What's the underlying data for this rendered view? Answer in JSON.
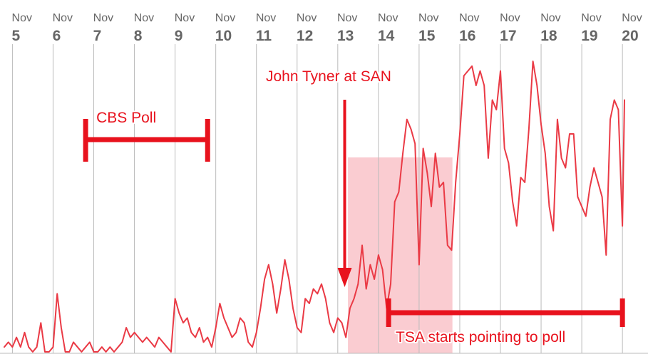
{
  "colors": {
    "line": "#ea3a45",
    "annotation": "#e8121d",
    "highlight": "#f6a3ac",
    "grid": "#bbbbbb",
    "tick_text": "#666666"
  },
  "chart_data": {
    "type": "line",
    "title": "",
    "xlabel": "",
    "ylabel": "",
    "grid": true,
    "legend": "none",
    "x_ticks": [
      {
        "month": "Nov",
        "day": "5"
      },
      {
        "month": "Nov",
        "day": "6"
      },
      {
        "month": "Nov",
        "day": "7"
      },
      {
        "month": "Nov",
        "day": "8"
      },
      {
        "month": "Nov",
        "day": "9"
      },
      {
        "month": "Nov",
        "day": "10"
      },
      {
        "month": "Nov",
        "day": "11"
      },
      {
        "month": "Nov",
        "day": "12"
      },
      {
        "month": "Nov",
        "day": "13"
      },
      {
        "month": "Nov",
        "day": "14"
      },
      {
        "month": "Nov",
        "day": "15"
      },
      {
        "month": "Nov",
        "day": "16"
      },
      {
        "month": "Nov",
        "day": "17"
      },
      {
        "month": "Nov",
        "day": "18"
      },
      {
        "month": "Nov",
        "day": "19"
      },
      {
        "month": "Nov",
        "day": "20"
      }
    ],
    "xlim": [
      4.85,
      20.1
    ],
    "ylim": [
      0,
      100
    ],
    "series": [
      {
        "points": [
          [
            4.85,
            1
          ],
          [
            4.95,
            2
          ],
          [
            5.05,
            1
          ],
          [
            5.15,
            3
          ],
          [
            5.25,
            1
          ],
          [
            5.35,
            4
          ],
          [
            5.45,
            1
          ],
          [
            5.55,
            0
          ],
          [
            5.65,
            1
          ],
          [
            5.75,
            6
          ],
          [
            5.85,
            0
          ],
          [
            5.95,
            0
          ],
          [
            6.05,
            1
          ],
          [
            6.15,
            12
          ],
          [
            6.25,
            5
          ],
          [
            6.35,
            0
          ],
          [
            6.45,
            0
          ],
          [
            6.55,
            2
          ],
          [
            6.65,
            1
          ],
          [
            6.75,
            0
          ],
          [
            6.85,
            1
          ],
          [
            6.95,
            2
          ],
          [
            7.05,
            0
          ],
          [
            7.15,
            0
          ],
          [
            7.25,
            1
          ],
          [
            7.35,
            0
          ],
          [
            7.45,
            1
          ],
          [
            7.55,
            0
          ],
          [
            7.65,
            1
          ],
          [
            7.75,
            2
          ],
          [
            7.85,
            5
          ],
          [
            7.95,
            3
          ],
          [
            8.05,
            4
          ],
          [
            8.15,
            3
          ],
          [
            8.25,
            2
          ],
          [
            8.35,
            3
          ],
          [
            8.45,
            2
          ],
          [
            8.55,
            1
          ],
          [
            8.65,
            3
          ],
          [
            8.75,
            2
          ],
          [
            8.85,
            1
          ],
          [
            8.95,
            0
          ],
          [
            9.05,
            11
          ],
          [
            9.15,
            8
          ],
          [
            9.25,
            6
          ],
          [
            9.35,
            7
          ],
          [
            9.45,
            4
          ],
          [
            9.55,
            3
          ],
          [
            9.65,
            5
          ],
          [
            9.75,
            2
          ],
          [
            9.85,
            3
          ],
          [
            9.95,
            1
          ],
          [
            10.05,
            5
          ],
          [
            10.15,
            10
          ],
          [
            10.25,
            7
          ],
          [
            10.35,
            5
          ],
          [
            10.45,
            3
          ],
          [
            10.55,
            4
          ],
          [
            10.65,
            7
          ],
          [
            10.75,
            6
          ],
          [
            10.85,
            2
          ],
          [
            10.95,
            1
          ],
          [
            11.05,
            4
          ],
          [
            11.15,
            9
          ],
          [
            11.25,
            15
          ],
          [
            11.35,
            18
          ],
          [
            11.45,
            14
          ],
          [
            11.55,
            8
          ],
          [
            11.65,
            13
          ],
          [
            11.75,
            19
          ],
          [
            11.85,
            15
          ],
          [
            11.95,
            9
          ],
          [
            12.05,
            5
          ],
          [
            12.15,
            4
          ],
          [
            12.25,
            11
          ],
          [
            12.35,
            10
          ],
          [
            12.45,
            13
          ],
          [
            12.55,
            12
          ],
          [
            12.65,
            14
          ],
          [
            12.75,
            11
          ],
          [
            12.85,
            6
          ],
          [
            12.95,
            4
          ],
          [
            13.05,
            7
          ],
          [
            13.15,
            6
          ],
          [
            13.25,
            3
          ],
          [
            13.35,
            9
          ],
          [
            13.45,
            11
          ],
          [
            13.55,
            14
          ],
          [
            13.65,
            22
          ],
          [
            13.75,
            13
          ],
          [
            13.85,
            18
          ],
          [
            13.95,
            15
          ],
          [
            14.05,
            20
          ],
          [
            14.15,
            17
          ],
          [
            14.25,
            9
          ],
          [
            14.35,
            14
          ],
          [
            14.45,
            31
          ],
          [
            14.55,
            33
          ],
          [
            14.65,
            41
          ],
          [
            14.75,
            48
          ],
          [
            14.85,
            46
          ],
          [
            14.95,
            43
          ],
          [
            15.05,
            18
          ],
          [
            15.15,
            42
          ],
          [
            15.25,
            37
          ],
          [
            15.35,
            30
          ],
          [
            15.45,
            41
          ],
          [
            15.55,
            34
          ],
          [
            15.65,
            35
          ],
          [
            15.75,
            22
          ],
          [
            15.85,
            21
          ],
          [
            15.95,
            35
          ],
          [
            16.05,
            45
          ],
          [
            16.15,
            57
          ],
          [
            16.25,
            58
          ],
          [
            16.35,
            59
          ],
          [
            16.45,
            55
          ],
          [
            16.55,
            58
          ],
          [
            16.65,
            55
          ],
          [
            16.75,
            40
          ],
          [
            16.85,
            52
          ],
          [
            16.95,
            50
          ],
          [
            17.05,
            58
          ],
          [
            17.15,
            42
          ],
          [
            17.25,
            39
          ],
          [
            17.35,
            31
          ],
          [
            17.45,
            26
          ],
          [
            17.55,
            36
          ],
          [
            17.65,
            35
          ],
          [
            17.75,
            46
          ],
          [
            17.85,
            60
          ],
          [
            17.95,
            55
          ],
          [
            18.05,
            47
          ],
          [
            18.15,
            41
          ],
          [
            18.25,
            30
          ],
          [
            18.35,
            25
          ],
          [
            18.45,
            48
          ],
          [
            18.55,
            40
          ],
          [
            18.65,
            38
          ],
          [
            18.75,
            45
          ],
          [
            18.85,
            45
          ],
          [
            18.95,
            32
          ],
          [
            19.05,
            30
          ],
          [
            19.15,
            28
          ],
          [
            19.25,
            34
          ],
          [
            19.35,
            38
          ],
          [
            19.45,
            35
          ],
          [
            19.55,
            32
          ],
          [
            19.65,
            20
          ],
          [
            19.75,
            48
          ],
          [
            19.85,
            52
          ],
          [
            19.95,
            50
          ],
          [
            20.05,
            26
          ],
          [
            20.1,
            52
          ]
        ]
      }
    ],
    "annotations": [
      {
        "id": "cbs",
        "text": "CBS Poll",
        "from": 6.85,
        "to": 9.85
      },
      {
        "id": "tyner",
        "text": "John Tyner at SAN",
        "x": 13.22
      },
      {
        "id": "tsa",
        "text": "TSA starts pointing to poll",
        "from": 14.3,
        "to": 20.05
      }
    ],
    "highlight_range": [
      13.3,
      15.87
    ]
  }
}
